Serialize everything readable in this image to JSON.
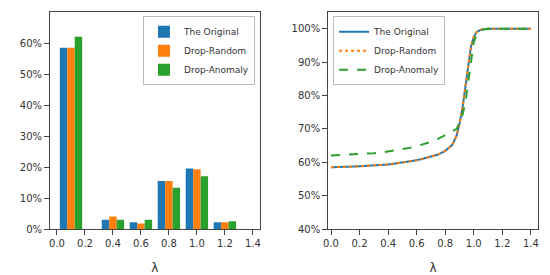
{
  "chart_data": [
    {
      "type": "bar",
      "x": [
        0.1,
        0.4,
        0.6,
        0.8,
        1.0,
        1.2
      ],
      "series": [
        {
          "name": "The Original",
          "color": "#1f77b4",
          "values": [
            0.585,
            0.03,
            0.022,
            0.155,
            0.195,
            0.022
          ]
        },
        {
          "name": "Drop-Random",
          "color": "#ff7f0e",
          "values": [
            0.585,
            0.04,
            0.018,
            0.155,
            0.193,
            0.022
          ]
        },
        {
          "name": "Drop-Anomaly",
          "color": "#2ca02c",
          "values": [
            0.62,
            0.03,
            0.03,
            0.133,
            0.17,
            0.025
          ]
        }
      ],
      "xlabel": "λ",
      "xlim": [
        -0.05,
        1.45
      ],
      "xticks": [
        {
          "value": 0.0,
          "label": "0.0"
        },
        0.2,
        0.4,
        0.6,
        0.8,
        {
          "value": 1.0,
          "label": "1.0"
        },
        1.2,
        1.4
      ],
      "ylim": [
        0,
        0.7
      ],
      "yticks": [
        {
          "value": 0.0,
          "label": "0%"
        },
        {
          "value": 0.1,
          "label": "10%"
        },
        {
          "value": 0.2,
          "label": "20%"
        },
        {
          "value": 0.3,
          "label": "30%"
        },
        {
          "value": 0.4,
          "label": "40%"
        },
        {
          "value": 0.5,
          "label": "50%"
        },
        {
          "value": 0.6,
          "label": "60%"
        }
      ],
      "grid": false,
      "legend": "upper right"
    },
    {
      "type": "line",
      "x": [
        0.0,
        0.04,
        0.08,
        0.12,
        0.16,
        0.2,
        0.25,
        0.3,
        0.35,
        0.4,
        0.45,
        0.5,
        0.55,
        0.6,
        0.65,
        0.7,
        0.75,
        0.8,
        0.85,
        0.88,
        0.9,
        0.92,
        0.94,
        0.96,
        0.98,
        1.0,
        1.02,
        1.05,
        1.1,
        1.15,
        1.2,
        1.25,
        1.3,
        1.35,
        1.4
      ],
      "series": [
        {
          "name": "The Original",
          "color": "#1f77b4",
          "line_style": "solid",
          "values": [
            0.585,
            0.585,
            0.586,
            0.586,
            0.587,
            0.588,
            0.589,
            0.59,
            0.591,
            0.593,
            0.596,
            0.599,
            0.602,
            0.606,
            0.611,
            0.616,
            0.623,
            0.634,
            0.652,
            0.68,
            0.715,
            0.76,
            0.82,
            0.89,
            0.945,
            0.975,
            0.99,
            0.997,
            1.0,
            1.0,
            1.0,
            1.0,
            1.0,
            1.0,
            1.0
          ]
        },
        {
          "name": "Drop-Random",
          "color": "#ff7f0e",
          "line_style": "dotted",
          "values": [
            0.585,
            0.585,
            0.586,
            0.586,
            0.587,
            0.588,
            0.589,
            0.59,
            0.591,
            0.593,
            0.596,
            0.599,
            0.602,
            0.606,
            0.611,
            0.616,
            0.623,
            0.634,
            0.652,
            0.68,
            0.715,
            0.76,
            0.82,
            0.89,
            0.945,
            0.975,
            0.99,
            0.997,
            1.0,
            1.0,
            1.0,
            1.0,
            1.0,
            1.0,
            1.0
          ]
        },
        {
          "name": "Drop-Anomaly",
          "color": "#2ca02c",
          "line_style": "dashed",
          "values": [
            0.62,
            0.621,
            0.621,
            0.622,
            0.622,
            0.623,
            0.625,
            0.627,
            0.629,
            0.632,
            0.635,
            0.639,
            0.643,
            0.648,
            0.654,
            0.661,
            0.67,
            0.682,
            0.692,
            0.7,
            0.718,
            0.74,
            0.775,
            0.84,
            0.91,
            0.96,
            0.982,
            0.996,
            1.0,
            1.0,
            1.0,
            1.0,
            1.0,
            1.0,
            1.0
          ]
        }
      ],
      "xlabel": "λ",
      "xlim": [
        -0.02,
        1.45
      ],
      "xticks": [
        {
          "value": 0.0,
          "label": "0.0"
        },
        0.2,
        0.4,
        0.6,
        0.8,
        {
          "value": 1.0,
          "label": "1.0"
        },
        1.2,
        1.4
      ],
      "ylim": [
        0.4,
        1.05
      ],
      "yticks": [
        {
          "value": 0.4,
          "label": "40%"
        },
        {
          "value": 0.5,
          "label": "50%"
        },
        {
          "value": 0.6,
          "label": "60%"
        },
        {
          "value": 0.7,
          "label": "70%"
        },
        {
          "value": 0.8,
          "label": "80%"
        },
        {
          "value": 0.9,
          "label": "90%"
        },
        {
          "value": 1.0,
          "label": "100%"
        }
      ],
      "grid": false,
      "legend": "upper left"
    }
  ]
}
